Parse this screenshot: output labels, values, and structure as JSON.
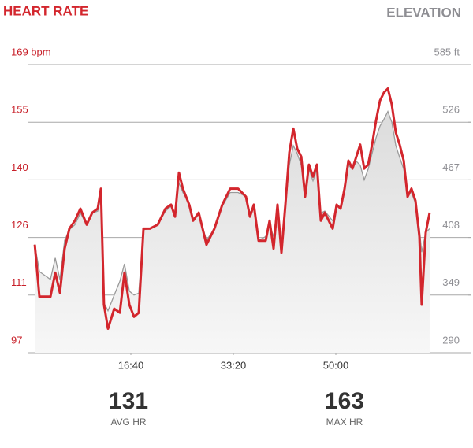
{
  "chart_data": {
    "type": "line",
    "ylabel": "HEART RATE",
    "y2label": "ELEVATION",
    "x": [
      62,
      108,
      162,
      215,
      262,
      308,
      354,
      400,
      454,
      508,
      569,
      623,
      677,
      708,
      738,
      777,
      838,
      892,
      938,
      985,
      1031,
      1077,
      1123,
      1185,
      1262,
      1338,
      1392,
      1431,
      1469,
      1508,
      1569,
      1608,
      1662,
      1738,
      1815,
      1892,
      1969,
      2046,
      2123,
      2162,
      2200,
      2246,
      2315,
      2354,
      2392,
      2431,
      2469,
      2508,
      2546,
      2585,
      2623,
      2662,
      2700,
      2738,
      2777,
      2815,
      2854,
      2892,
      2969,
      3008,
      3046,
      3085,
      3123,
      3162,
      3200,
      3238,
      3277,
      3315,
      3354,
      3392,
      3431,
      3469,
      3508,
      3546,
      3585,
      3623,
      3662,
      3700,
      3738,
      3777,
      3815,
      3838,
      3877,
      3915
    ],
    "series": [
      {
        "color": "#d3262d",
        "values": [
          124,
          111,
          111,
          111,
          117,
          112,
          123,
          128,
          130,
          133,
          129,
          132,
          133,
          138,
          109,
          103,
          108,
          107,
          117,
          109,
          106,
          107,
          128,
          128,
          129,
          133,
          134,
          131,
          142,
          138,
          134,
          130,
          132,
          124,
          128,
          134,
          138,
          138,
          136,
          131,
          134,
          125,
          125,
          130,
          123,
          134,
          122,
          134,
          147,
          153,
          148,
          146,
          136,
          144,
          141,
          144,
          130,
          132,
          128,
          134,
          133,
          138,
          145,
          143,
          146,
          149,
          143,
          144,
          149,
          155,
          160,
          162,
          163,
          159,
          152,
          149,
          145,
          136,
          138,
          135,
          126,
          109,
          127,
          132
        ]
      },
      {
        "color": "#9a9a9a",
        "axis": "y2",
        "type": "area",
        "values": [
          401,
          373,
          369,
          365,
          387,
          365,
          405,
          416,
          421,
          433,
          421,
          433,
          435,
          450,
          341,
          333,
          349,
          363,
          381,
          353,
          349,
          351,
          416,
          417,
          421,
          435,
          440,
          433,
          464,
          454,
          443,
          425,
          433,
          405,
          417,
          440,
          454,
          454,
          450,
          433,
          440,
          405,
          409,
          421,
          409,
          440,
          401,
          440,
          482,
          502,
          494,
          482,
          458,
          478,
          466,
          478,
          433,
          435,
          425,
          440,
          438,
          462,
          482,
          478,
          486,
          482,
          467,
          478,
          494,
          510,
          522,
          529,
          537,
          526,
          502,
          490,
          478,
          454,
          454,
          443,
          417,
          393,
          413,
          417
        ]
      }
    ],
    "xlim": [
      0,
      4323
    ],
    "xticks": [
      {
        "value": 1000,
        "label": "16:40"
      },
      {
        "value": 2000,
        "label": "33:20"
      },
      {
        "value": 3000,
        "label": "50:00"
      }
    ],
    "ylim": [
      97,
      169
    ],
    "yticks": [
      97,
      {
        "value": 111.4,
        "label": "111"
      },
      {
        "value": 125.8,
        "label": "126"
      },
      {
        "value": 140.2,
        "label": "140"
      },
      {
        "value": 154.6,
        "label": "155"
      },
      {
        "value": 169,
        "label": "169 bpm"
      }
    ],
    "y2lim": [
      290,
      585
    ],
    "y2ticks": [
      290,
      349,
      408,
      467,
      526,
      {
        "value": 585,
        "label": "585 ft"
      }
    ],
    "grid": true
  },
  "stats": [
    {
      "value": 131,
      "label": "AVG HR"
    },
    {
      "value": 163,
      "label": "MAX HR"
    }
  ]
}
